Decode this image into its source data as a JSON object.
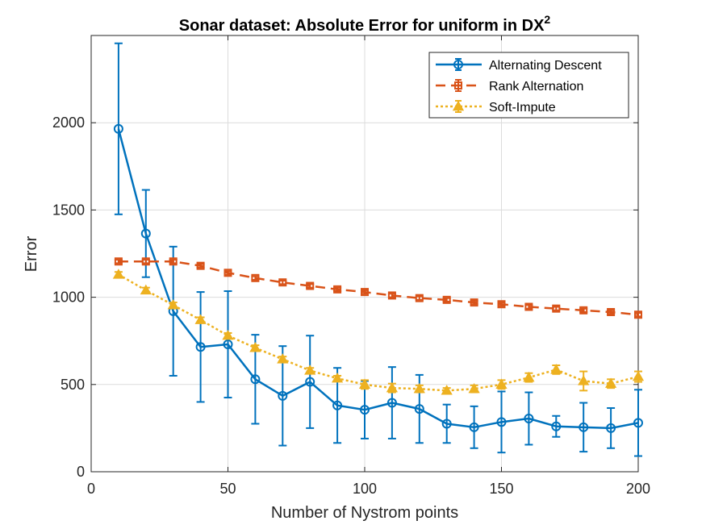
{
  "chart_data": {
    "type": "line",
    "title": "Sonar dataset: Absolute Error for uniform in DX",
    "title_superscript": "2",
    "xlabel": "Number of Nystrom points",
    "ylabel": "Error",
    "xlim": [
      0,
      200
    ],
    "ylim": [
      0,
      2500
    ],
    "xticks": [
      0,
      50,
      100,
      150,
      200
    ],
    "yticks": [
      0,
      500,
      1000,
      1500,
      2000
    ],
    "grid": true,
    "legend_position": "top-right",
    "x": [
      10,
      20,
      30,
      40,
      50,
      60,
      70,
      80,
      90,
      100,
      110,
      120,
      130,
      140,
      150,
      160,
      170,
      180,
      190,
      200
    ],
    "series": [
      {
        "name": "Alternating Descent",
        "color": "#0072BD",
        "line_style": "solid",
        "marker": "circle",
        "values": [
          1965,
          1365,
          920,
          715,
          730,
          530,
          435,
          515,
          380,
          355,
          395,
          360,
          275,
          255,
          285,
          305,
          260,
          255,
          250,
          280
        ],
        "error": [
          490,
          250,
          370,
          315,
          305,
          255,
          285,
          265,
          215,
          165,
          205,
          195,
          110,
          120,
          175,
          150,
          60,
          140,
          115,
          190
        ]
      },
      {
        "name": "Rank Alternation",
        "color": "#D95319",
        "line_style": "dashed",
        "marker": "square",
        "values": [
          1205,
          1205,
          1205,
          1180,
          1140,
          1110,
          1085,
          1065,
          1045,
          1030,
          1010,
          995,
          985,
          970,
          960,
          945,
          935,
          925,
          915,
          900
        ],
        "error": [
          10,
          10,
          10,
          10,
          10,
          10,
          10,
          10,
          10,
          10,
          10,
          10,
          10,
          10,
          10,
          10,
          10,
          10,
          10,
          10
        ]
      },
      {
        "name": "Soft-Impute",
        "color": "#EDB120",
        "line_style": "dotted",
        "marker": "triangle",
        "values": [
          1130,
          1040,
          955,
          870,
          780,
          710,
          645,
          580,
          535,
          500,
          480,
          475,
          465,
          475,
          500,
          540,
          585,
          520,
          505,
          545
        ],
        "error": [
          15,
          15,
          15,
          15,
          15,
          15,
          15,
          15,
          15,
          25,
          25,
          20,
          15,
          20,
          25,
          25,
          25,
          55,
          25,
          30
        ]
      }
    ]
  }
}
